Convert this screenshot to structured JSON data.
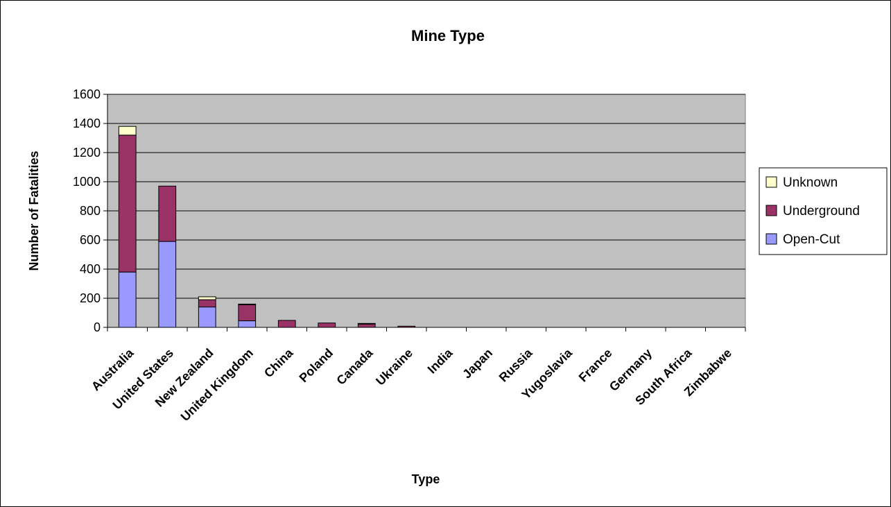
{
  "chart_data": {
    "type": "bar",
    "stacked": true,
    "title": "Mine Type",
    "xlabel": "Type",
    "ylabel": "Number of Fatalities",
    "ylim": [
      0,
      1600
    ],
    "yticks": [
      0,
      200,
      400,
      600,
      800,
      1000,
      1200,
      1400,
      1600
    ],
    "grid": true,
    "legend_position": "right",
    "categories": [
      "Australia",
      "United States",
      "New Zealand",
      "United Kingdom",
      "China",
      "Poland",
      "Canada",
      "Ukraine",
      "India",
      "Japan",
      "Russia",
      "Yugoslavia",
      "France",
      "Germany",
      "South Africa",
      "Zimbabwe"
    ],
    "series": [
      {
        "name": "Open-Cut",
        "color": "#9999ff",
        "values": [
          380,
          590,
          140,
          45,
          0,
          0,
          0,
          0,
          0,
          0,
          0,
          0,
          0,
          0,
          0,
          0
        ]
      },
      {
        "name": "Underground",
        "color": "#993366",
        "values": [
          940,
          380,
          50,
          110,
          48,
          30,
          25,
          8,
          0,
          0,
          0,
          0,
          0,
          0,
          0,
          0
        ]
      },
      {
        "name": "Unknown",
        "color": "#ffffcc",
        "values": [
          60,
          0,
          20,
          5,
          0,
          0,
          2,
          0,
          0,
          0,
          0,
          0,
          0,
          0,
          0,
          0
        ]
      }
    ],
    "plot_background": "#c0c0c0"
  }
}
